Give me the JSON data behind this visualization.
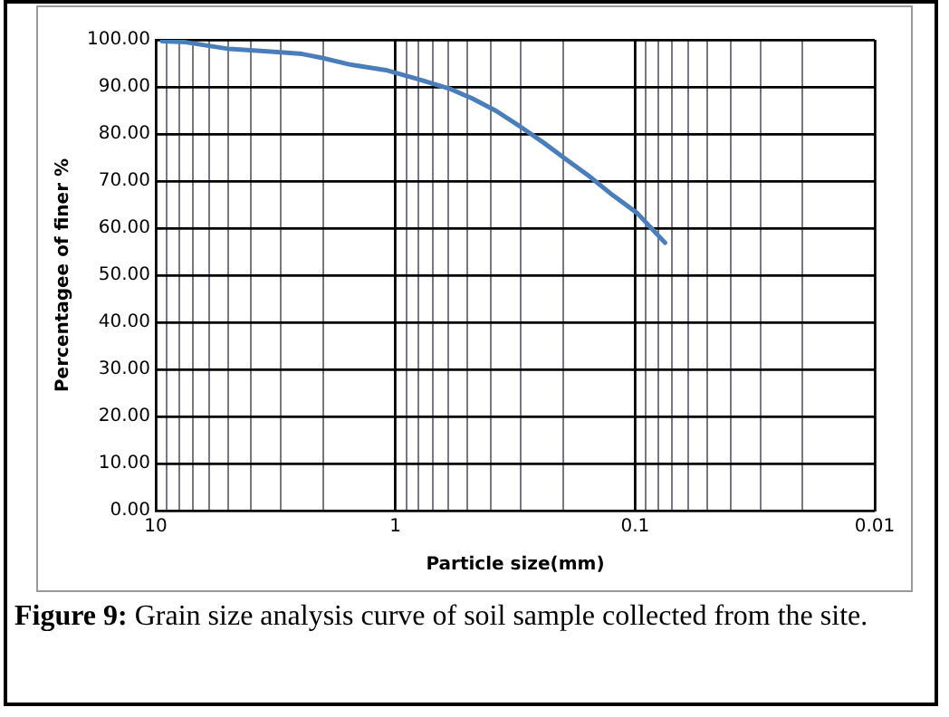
{
  "chart_data": {
    "type": "line",
    "xlabel": "Particle size(mm)",
    "ylabel": "Percentagee of finer %",
    "annotations": [
      "Figure 9: Grain size analysis curve of soil sample collected from the site."
    ],
    "log": "x",
    "grid": true,
    "legend": false,
    "marker": "none",
    "line_style": "solid",
    "xlim": [
      10,
      0.01
    ],
    "xticks": [
      10,
      {
        "value": 9,
        "label": null
      },
      {
        "value": 8,
        "label": null
      },
      {
        "value": 7,
        "label": null
      },
      {
        "value": 6,
        "label": null
      },
      {
        "value": 5,
        "label": null
      },
      {
        "value": 4,
        "label": null
      },
      {
        "value": 3,
        "label": null
      },
      {
        "value": 2,
        "label": null
      },
      1,
      {
        "value": 0.9,
        "label": null
      },
      {
        "value": 0.8,
        "label": null
      },
      {
        "value": 0.7,
        "label": null
      },
      {
        "value": 0.6,
        "label": null
      },
      {
        "value": 0.5,
        "label": null
      },
      {
        "value": 0.4,
        "label": null
      },
      {
        "value": 0.3,
        "label": null
      },
      {
        "value": 0.2,
        "label": null
      },
      0.1,
      {
        "value": 0.09,
        "label": null
      },
      {
        "value": 0.08,
        "label": null
      },
      {
        "value": 0.07,
        "label": null
      },
      {
        "value": 0.06,
        "label": null
      },
      {
        "value": 0.05,
        "label": null
      },
      {
        "value": 0.04,
        "label": null
      },
      {
        "value": 0.03,
        "label": null
      },
      {
        "value": 0.02,
        "label": null
      },
      0.01
    ],
    "ylim": [
      0,
      100
    ],
    "yticks": [
      {
        "value": 0,
        "label": "0.00"
      },
      {
        "value": 10,
        "label": "10.00"
      },
      {
        "value": 20,
        "label": "20.00"
      },
      {
        "value": 30,
        "label": "30.00"
      },
      {
        "value": 40,
        "label": "40.00"
      },
      {
        "value": 50,
        "label": "50.00"
      },
      {
        "value": 60,
        "label": "60.00"
      },
      {
        "value": 70,
        "label": "70.00"
      },
      {
        "value": 80,
        "label": "80.00"
      },
      {
        "value": 90,
        "label": "90.00"
      },
      {
        "value": 100,
        "label": "100.00"
      }
    ],
    "series": [
      {
        "color": "#4a7ebb",
        "x": [
          9.4,
          7.5,
          5,
          3.1,
          2.45,
          2,
          1.53,
          1.08,
          0.8,
          0.6,
          0.48,
          0.38,
          0.3,
          0.24,
          0.2,
          0.156,
          0.124,
          0.098,
          0.075
        ],
        "values": [
          99.7,
          99.5,
          98.1,
          97.4,
          97,
          96.1,
          94.7,
          93.5,
          91.6,
          89.7,
          87.6,
          84.9,
          81.5,
          78.1,
          75.1,
          71.1,
          67,
          63.2,
          56.9
        ]
      }
    ]
  }
}
